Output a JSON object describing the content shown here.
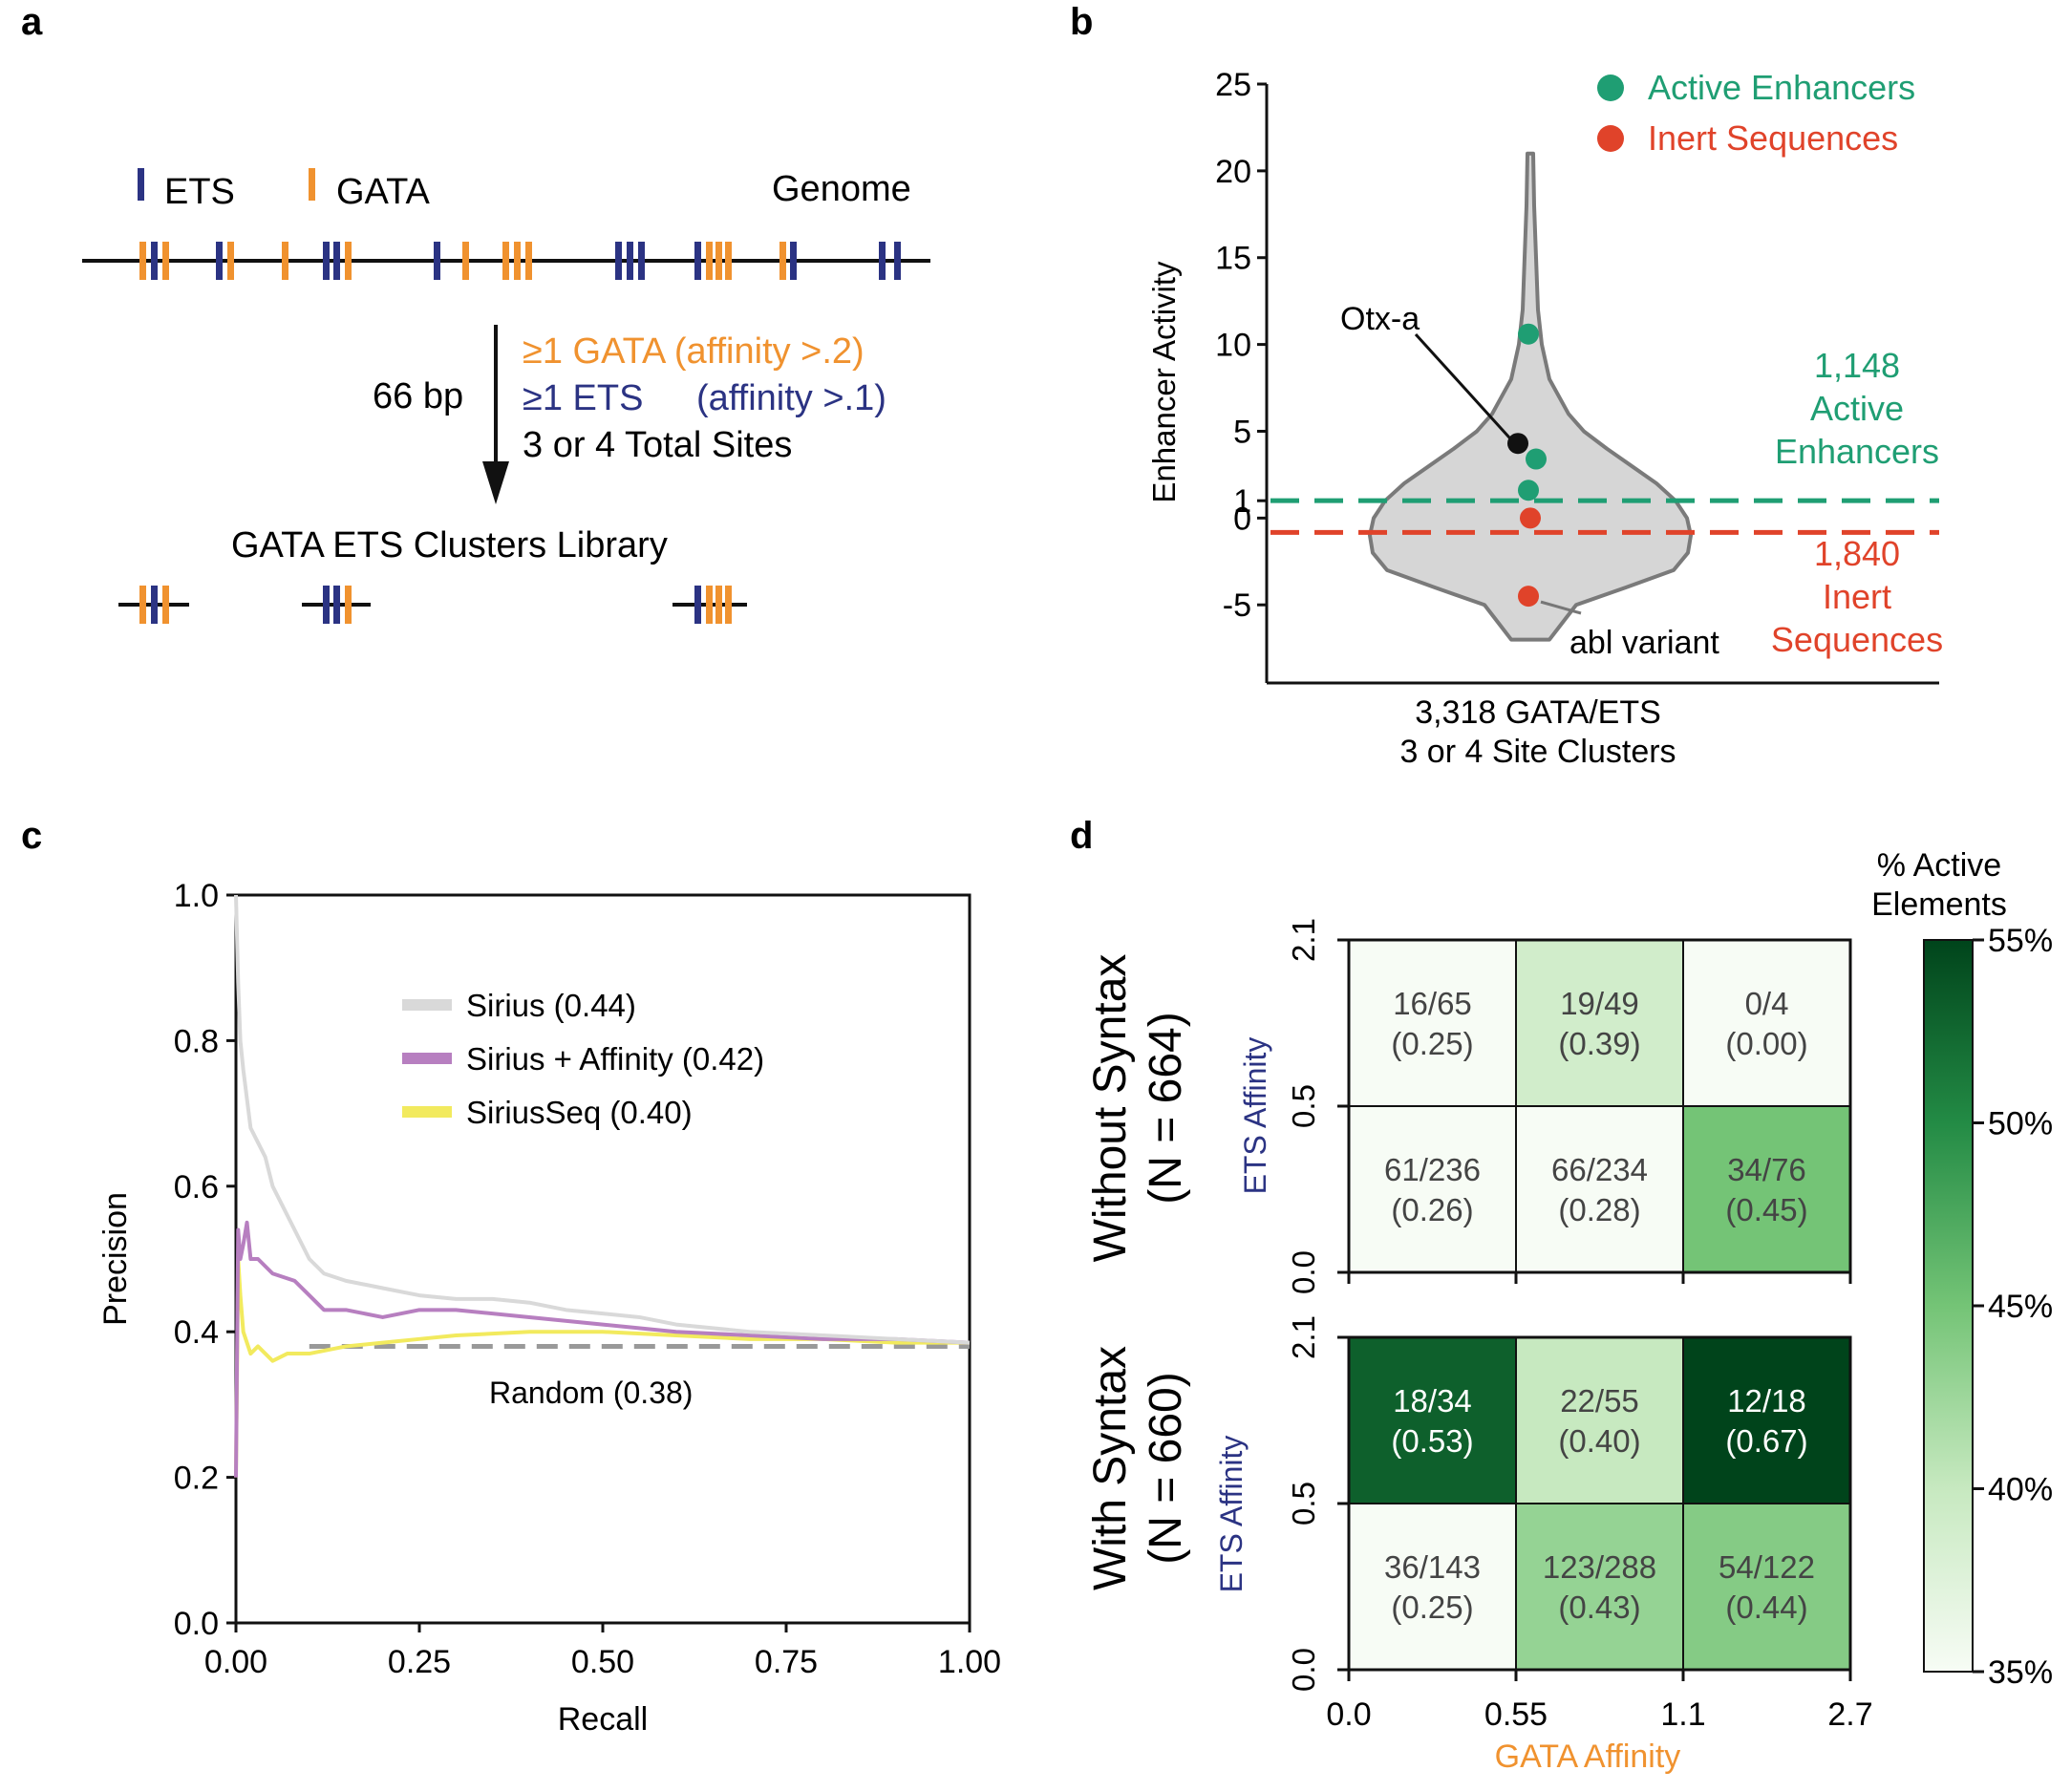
{
  "colors": {
    "ets": "#2b3383",
    "gata": "#f0922f",
    "active": "#1f9e73",
    "inert": "#e0432a",
    "violin_fill": "#d6d6d6",
    "violin_stroke": "#7a7a7a",
    "sirius": "#d9d9d9",
    "sirius_affinity": "#b77fc0",
    "siriusseq": "#f2ea5e",
    "random": "#999999",
    "affinity_label_ets": "#2b3383",
    "affinity_label_gata": "#f0922f"
  },
  "panel_a": {
    "label": "a",
    "legend_ets": "ETS",
    "legend_gata": "GATA",
    "genome_label": "Genome",
    "bp_label": "66 bp",
    "rule_gata": "≥1 GATA (affinity >.2)",
    "rule_ets_1": "≥1 ETS",
    "rule_ets_2": "(affinity >.1)",
    "rule_total": "3 or 4 Total Sites",
    "library_label": "GATA ETS Clusters Library"
  },
  "panel_b": {
    "label": "b",
    "chart_data": {
      "type": "violin",
      "ylabel": "Enhancer Activity",
      "xlabel_line1": "3,318 GATA/ETS",
      "xlabel_line2": "3 or 4 Site Clusters",
      "yticks": [
        "25",
        "20",
        "15",
        "10",
        "5",
        "1",
        "0",
        "-5"
      ],
      "ytick_values": [
        25,
        20,
        15,
        10,
        5,
        1,
        0,
        -5
      ],
      "ylim": [
        -9.5,
        25
      ],
      "thresholds": {
        "active": 1,
        "inert": 0
      },
      "legend": [
        {
          "name": "Active Enhancers",
          "color": "#1f9e73"
        },
        {
          "name": "Inert Sequences",
          "color": "#e0432a"
        }
      ],
      "points": [
        {
          "y": 10.6,
          "group": "active"
        },
        {
          "y": 3.4,
          "group": "active"
        },
        {
          "y": 1.6,
          "group": "active"
        },
        {
          "y": 4.3,
          "group": "otx"
        },
        {
          "y": 0,
          "group": "inert"
        },
        {
          "y": -4.5,
          "group": "inert"
        }
      ],
      "annotation_otx": "Otx-a",
      "annotation_abl": "abl variant",
      "active_count": "1,148",
      "active_text_1": "Active",
      "active_text_2": "Enhancers",
      "inert_count": "1,840",
      "inert_text_1": "Inert",
      "inert_text_2": "Sequences"
    }
  },
  "panel_c": {
    "label": "c",
    "chart_data": {
      "type": "line",
      "xlabel": "Recall",
      "ylabel": "Precision",
      "xlim": [
        0,
        1
      ],
      "ylim": [
        0,
        1
      ],
      "xticks": [
        "0.00",
        "0.25",
        "0.50",
        "0.75",
        "1.00"
      ],
      "xtick_values": [
        0,
        0.25,
        0.5,
        0.75,
        1
      ],
      "yticks": [
        "0.0",
        "0.2",
        "0.4",
        "0.6",
        "0.8",
        "1.0"
      ],
      "ytick_values": [
        0,
        0.2,
        0.4,
        0.6,
        0.8,
        1.0
      ],
      "series": [
        {
          "name": "Sirius (0.44)",
          "key": "sirius",
          "x": [
            0.0,
            0.003,
            0.006,
            0.01,
            0.015,
            0.02,
            0.03,
            0.04,
            0.05,
            0.06,
            0.08,
            0.1,
            0.12,
            0.15,
            0.2,
            0.25,
            0.3,
            0.35,
            0.4,
            0.45,
            0.5,
            0.55,
            0.6,
            0.7,
            0.8,
            0.9,
            1.0
          ],
          "y": [
            1.0,
            0.88,
            0.8,
            0.76,
            0.72,
            0.68,
            0.66,
            0.64,
            0.6,
            0.58,
            0.54,
            0.5,
            0.48,
            0.47,
            0.46,
            0.45,
            0.445,
            0.445,
            0.44,
            0.43,
            0.425,
            0.42,
            0.41,
            0.4,
            0.395,
            0.39,
            0.385
          ]
        },
        {
          "name": "Sirius + Affinity (0.42)",
          "key": "sirius_affinity",
          "x": [
            0.0,
            0.003,
            0.006,
            0.01,
            0.015,
            0.02,
            0.03,
            0.05,
            0.08,
            0.1,
            0.12,
            0.15,
            0.2,
            0.25,
            0.3,
            0.4,
            0.5,
            0.6,
            0.7,
            0.8,
            0.9,
            1.0
          ],
          "y": [
            0.2,
            0.54,
            0.5,
            0.52,
            0.55,
            0.5,
            0.5,
            0.48,
            0.47,
            0.45,
            0.43,
            0.43,
            0.42,
            0.43,
            0.43,
            0.42,
            0.41,
            0.4,
            0.395,
            0.39,
            0.39,
            0.385
          ]
        },
        {
          "name": "SiriusSeq (0.40)",
          "key": "siriusseq",
          "x": [
            0.0,
            0.003,
            0.006,
            0.01,
            0.02,
            0.03,
            0.05,
            0.07,
            0.1,
            0.15,
            0.2,
            0.25,
            0.3,
            0.4,
            0.5,
            0.6,
            0.7,
            0.8,
            0.9,
            1.0
          ],
          "y": [
            0.2,
            0.5,
            0.45,
            0.4,
            0.37,
            0.38,
            0.36,
            0.37,
            0.37,
            0.38,
            0.385,
            0.39,
            0.395,
            0.4,
            0.4,
            0.395,
            0.39,
            0.39,
            0.385,
            0.385
          ]
        }
      ],
      "baseline": {
        "name": "Random (0.38)",
        "y": 0.38,
        "x_start": 0.1
      }
    }
  },
  "panel_d": {
    "label": "d",
    "chart_data": {
      "type": "heatmap",
      "xlabel": "GATA Affinity",
      "xticks": [
        "0.0",
        "0.55",
        "1.1",
        "2.7"
      ],
      "ylabel": "ETS Affinity",
      "yticks": [
        "2.1",
        "0.5",
        "0.0"
      ],
      "colorbar_title_1": "% Active",
      "colorbar_title_2": "Elements",
      "colorbar_ticks": [
        "55%",
        "50%",
        "45%",
        "40%",
        "35%"
      ],
      "colorbar_values": [
        55,
        50,
        45,
        40,
        35
      ],
      "color_range": [
        35,
        55
      ],
      "panels": [
        {
          "title_1": "Without Syntax",
          "title_2": "(N = 664)",
          "rows": [
            [
              {
                "count": "16/65",
                "frac": "(0.25)",
                "value": 0.25
              },
              {
                "count": "19/49",
                "frac": "(0.39)",
                "value": 0.39
              },
              {
                "count": "0/4",
                "frac": "(0.00)",
                "value": 0.0
              }
            ],
            [
              {
                "count": "61/236",
                "frac": "(0.26)",
                "value": 0.26
              },
              {
                "count": "66/234",
                "frac": "(0.28)",
                "value": 0.28
              },
              {
                "count": "34/76",
                "frac": "(0.45)",
                "value": 0.45
              }
            ]
          ]
        },
        {
          "title_1": "With Syntax",
          "title_2": "(N = 660)",
          "rows": [
            [
              {
                "count": "18/34",
                "frac": "(0.53)",
                "value": 0.53
              },
              {
                "count": "22/55",
                "frac": "(0.40)",
                "value": 0.4
              },
              {
                "count": "12/18",
                "frac": "(0.67)",
                "value": 0.67
              }
            ],
            [
              {
                "count": "36/143",
                "frac": "(0.25)",
                "value": 0.25
              },
              {
                "count": "123/288",
                "frac": "(0.43)",
                "value": 0.43
              },
              {
                "count": "54/122",
                "frac": "(0.44)",
                "value": 0.44
              }
            ]
          ]
        }
      ]
    }
  }
}
